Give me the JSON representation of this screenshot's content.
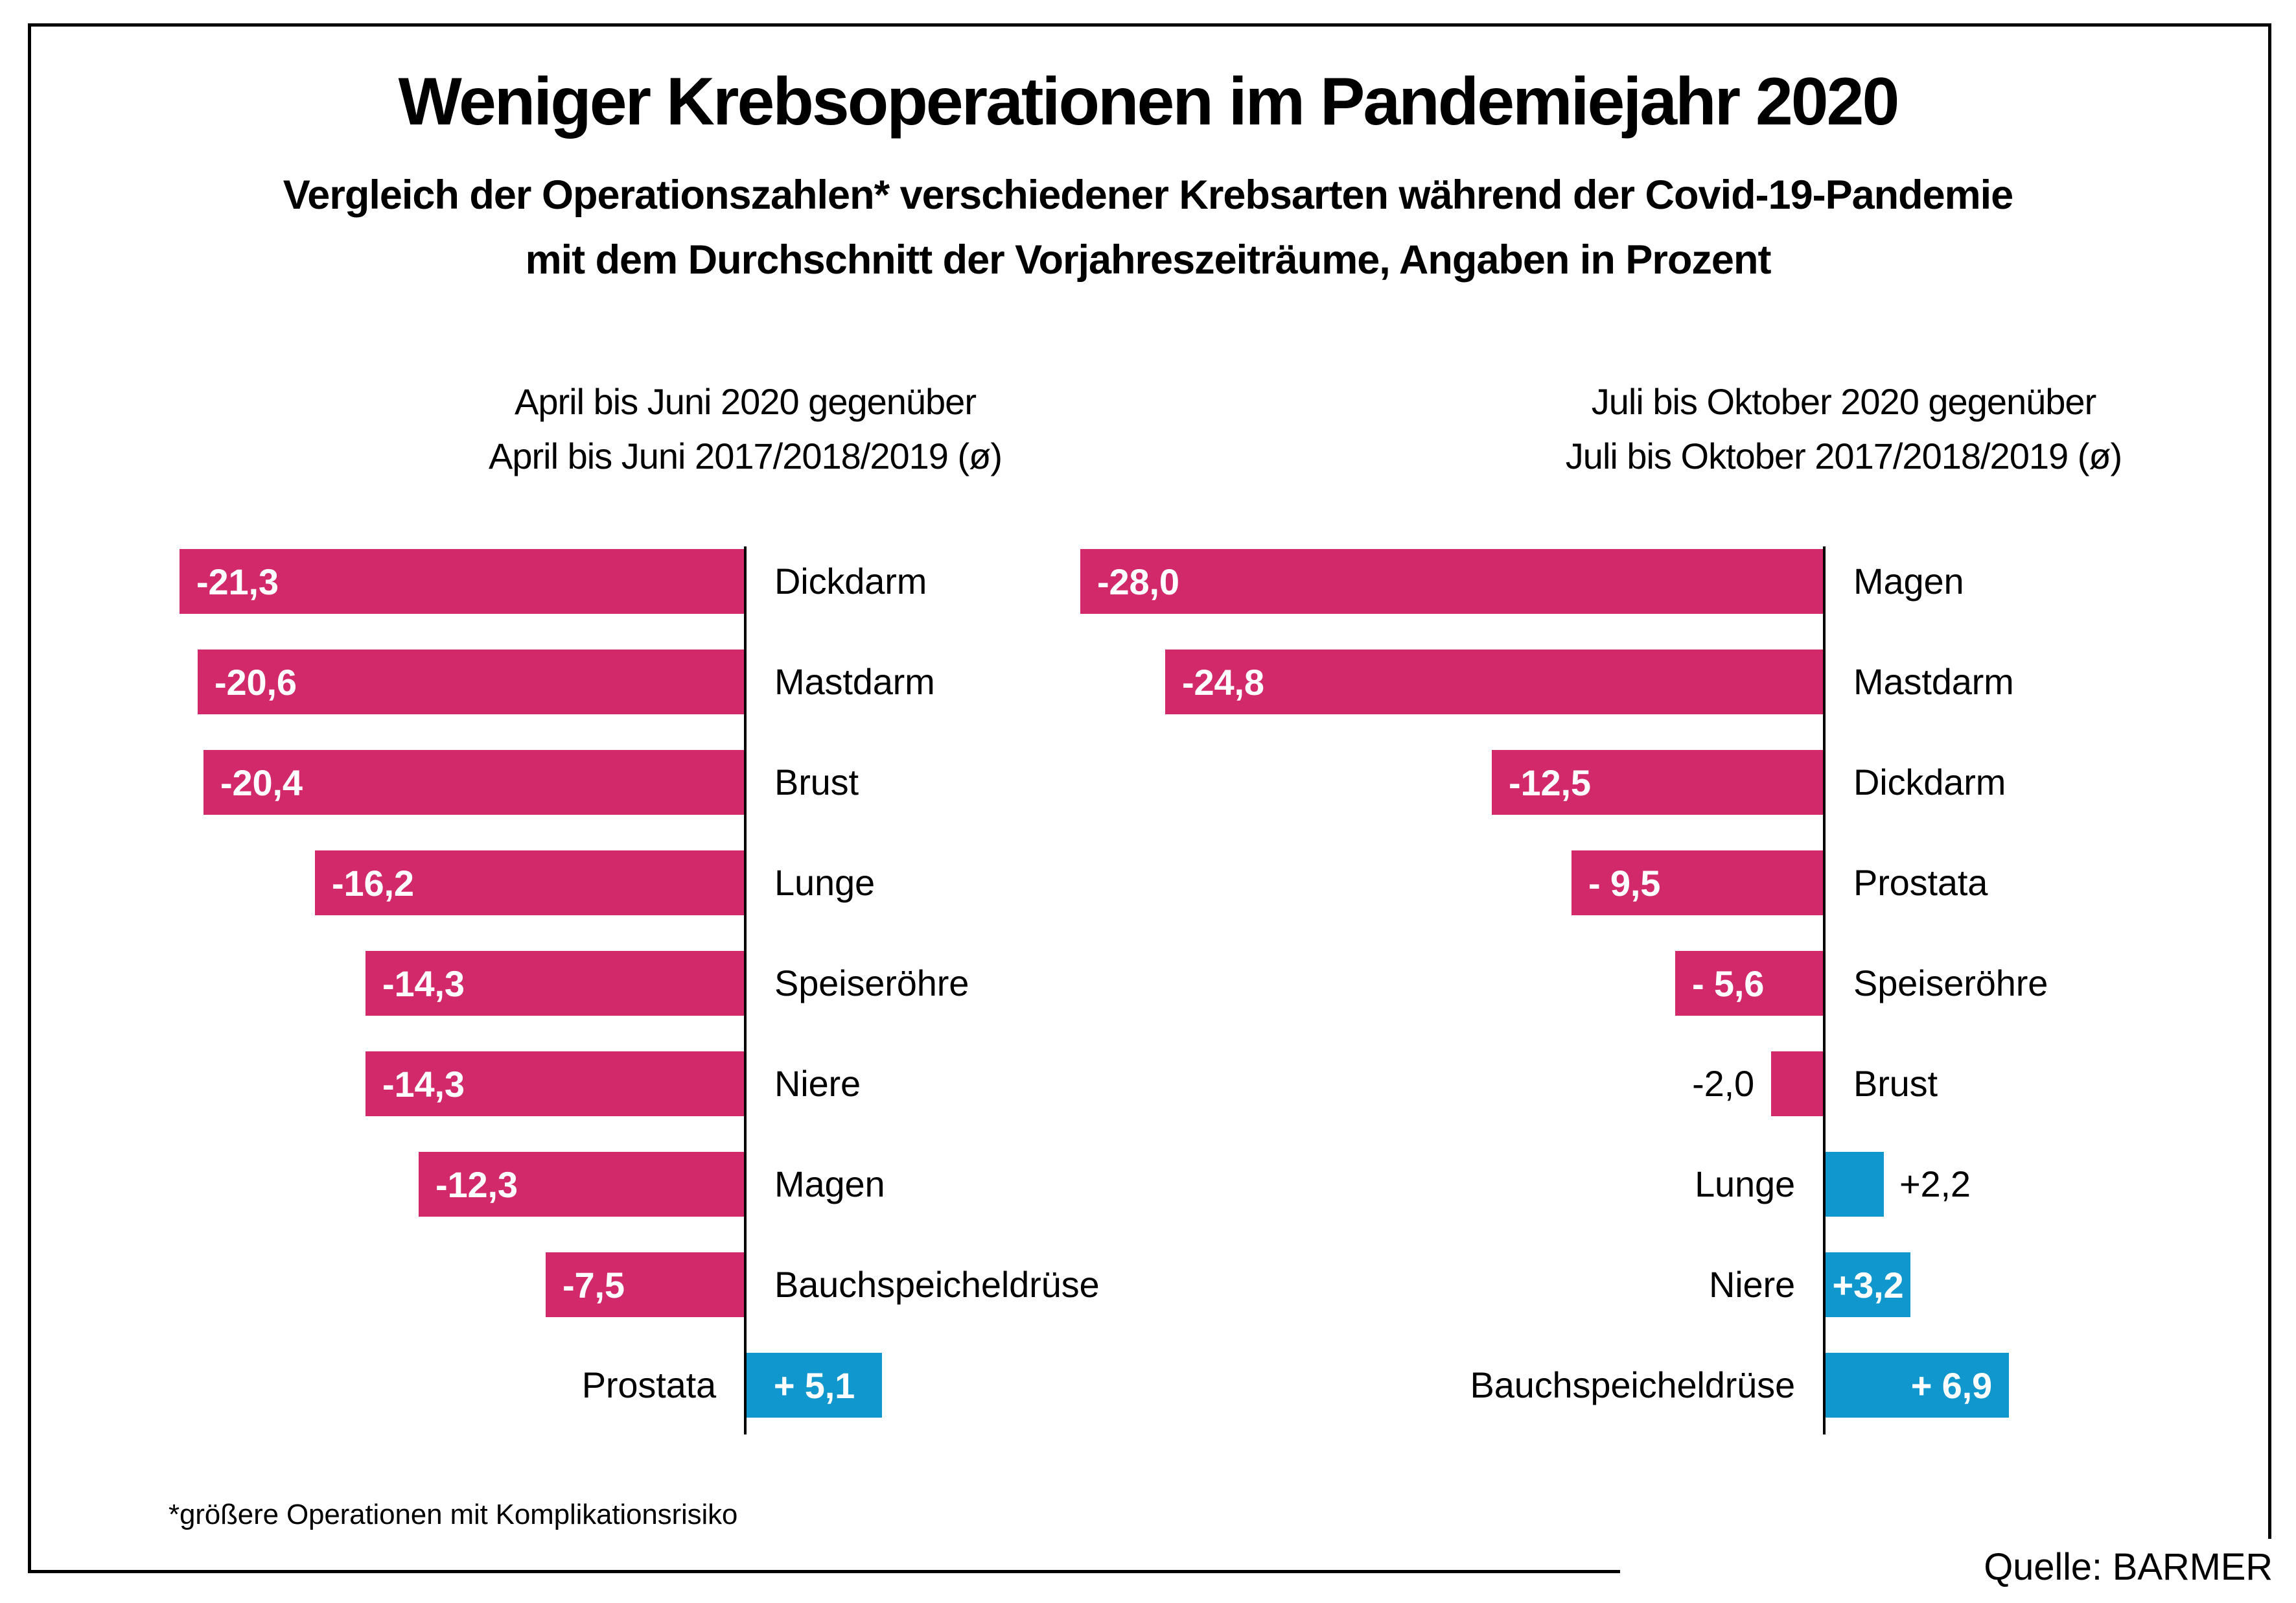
{
  "chart_data": {
    "type": "bar",
    "orientation": "horizontal",
    "title": "Weniger Krebsoperationen im Pandemiejahr 2020",
    "subtitle": {
      "line1": "Vergleich der Operationszahlen* verschiedener Krebsarten während der Covid-19-Pandemie",
      "line2": "mit dem Durchschnitt der Vorjahreszeiträume, Angaben in Prozent"
    },
    "unit": "percent",
    "xlim": [
      -30,
      8
    ],
    "grid": false,
    "legend": "none",
    "colors": {
      "decrease": "#d2296a",
      "increase": "#1097ce",
      "axis": "#000000"
    },
    "panels": [
      {
        "header": [
          "April bis Juni 2020 gegenüber",
          "April bis Juni 2017/2018/2019 (ø)"
        ],
        "rows": [
          {
            "label": "Dickdarm",
            "value": -21.3,
            "display": "-21,3",
            "value_pos": "inside-left"
          },
          {
            "label": "Mastdarm",
            "value": -20.6,
            "display": "-20,6",
            "value_pos": "inside-left"
          },
          {
            "label": "Brust",
            "value": -20.4,
            "display": "-20,4",
            "value_pos": "inside-left"
          },
          {
            "label": "Lunge",
            "value": -16.2,
            "display": "-16,2",
            "value_pos": "inside-left"
          },
          {
            "label": "Speiseröhre",
            "value": -14.3,
            "display": "-14,3",
            "value_pos": "inside-left"
          },
          {
            "label": "Niere",
            "value": -14.3,
            "display": "-14,3",
            "value_pos": "inside-left"
          },
          {
            "label": "Magen",
            "value": -12.3,
            "display": "-12,3",
            "value_pos": "inside-left"
          },
          {
            "label": "Bauchspeicheldrüse",
            "value": -7.5,
            "display": "-7,5",
            "value_pos": "inside-left"
          },
          {
            "label": "Prostata",
            "value": 5.1,
            "display": "+ 5,1",
            "value_pos": "inside-center"
          }
        ]
      },
      {
        "header": [
          "Juli bis Oktober 2020 gegenüber",
          "Juli bis Oktober 2017/2018/2019 (ø)"
        ],
        "rows": [
          {
            "label": "Magen",
            "value": -28.0,
            "display": "-28,0",
            "value_pos": "inside-left"
          },
          {
            "label": "Mastdarm",
            "value": -24.8,
            "display": "-24,8",
            "value_pos": "inside-left"
          },
          {
            "label": "Dickdarm",
            "value": -12.5,
            "display": "-12,5",
            "value_pos": "inside-left"
          },
          {
            "label": "Prostata",
            "value": -9.5,
            "display": "- 9,5",
            "value_pos": "inside-left"
          },
          {
            "label": "Speiseröhre",
            "value": -5.6,
            "display": "- 5,6",
            "value_pos": "inside-left"
          },
          {
            "label": "Brust",
            "value": -2.0,
            "display": "-2,0",
            "value_pos": "outside"
          },
          {
            "label": "Lunge",
            "value": 2.2,
            "display": "+2,2",
            "value_pos": "outside"
          },
          {
            "label": "Niere",
            "value": 3.2,
            "display": "+3,2",
            "value_pos": "inside-center"
          },
          {
            "label": "Bauchspeicheldrüse",
            "value": 6.9,
            "display": "+ 6,9",
            "value_pos": "inside-right"
          }
        ]
      }
    ],
    "footnote": "*größere Operationen mit Komplikationsrisiko",
    "source": "Quelle: BARMER"
  }
}
